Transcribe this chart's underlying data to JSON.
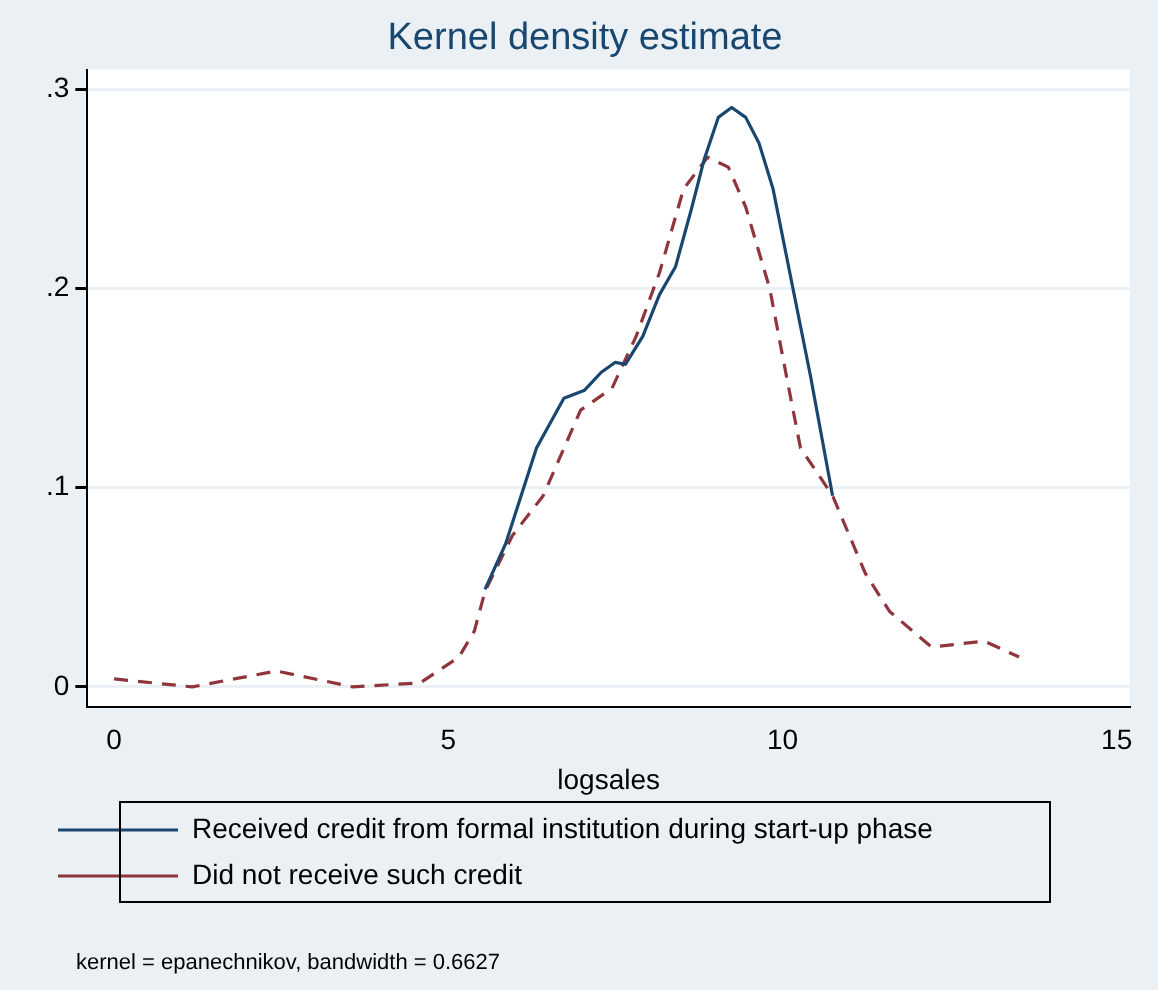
{
  "chart_data": {
    "type": "line",
    "title": "Kernel density estimate",
    "xlabel": "logsales",
    "annotations": [
      "kernel = epanechnikov, bandwidth = 0.6627"
    ],
    "xlim": [
      -0.4,
      15.2
    ],
    "xticks": [
      0,
      5,
      10,
      15
    ],
    "ylim": [
      -0.01,
      0.31
    ],
    "yticks": [
      {
        "value": 0,
        "label": "0"
      },
      {
        "value": 0.1,
        "label": ".1"
      },
      {
        "value": 0.2,
        "label": ".2"
      },
      {
        "value": 0.3,
        "label": ".3"
      }
    ],
    "grid": "y",
    "legend": "bottom",
    "marker": "none",
    "series": [
      {
        "name": "Received credit from formal institution during start-up phase",
        "color": "#1a476f",
        "line_style": "solid",
        "x": [
          5.55,
          5.86,
          6.32,
          6.73,
          7.04,
          7.29,
          7.5,
          7.65,
          7.91,
          8.16,
          8.4,
          8.63,
          8.83,
          9.04,
          9.24,
          9.45,
          9.65,
          9.86,
          10.11,
          10.42,
          10.75
        ],
        "values": [
          0.049,
          0.072,
          0.12,
          0.145,
          0.149,
          0.158,
          0.163,
          0.162,
          0.176,
          0.197,
          0.211,
          0.239,
          0.265,
          0.286,
          0.291,
          0.286,
          0.273,
          0.25,
          0.208,
          0.156,
          0.096
        ]
      },
      {
        "name": "Did not receive such credit",
        "color": "#90353b",
        "line_style": "dashed",
        "x": [
          0,
          1.17,
          2.43,
          3.57,
          4.58,
          5.16,
          5.39,
          5.55,
          5.96,
          6.42,
          6.98,
          7.45,
          7.81,
          8.16,
          8.52,
          8.88,
          9.19,
          9.45,
          9.81,
          10.06,
          10.27,
          10.75,
          11.24,
          11.6,
          12.23,
          13.02,
          13.54
        ],
        "values": [
          0.004,
          0,
          0.008,
          0,
          0.002,
          0.015,
          0.028,
          0.048,
          0.076,
          0.096,
          0.139,
          0.15,
          0.176,
          0.208,
          0.25,
          0.266,
          0.261,
          0.241,
          0.2,
          0.156,
          0.12,
          0.096,
          0.057,
          0.038,
          0.02,
          0.023,
          0.015
        ]
      }
    ]
  }
}
